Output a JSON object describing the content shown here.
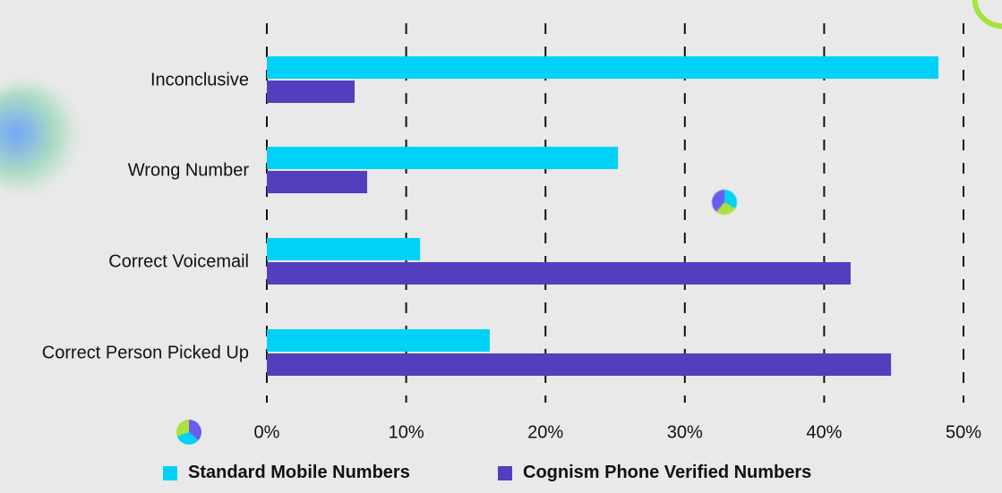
{
  "chart_data": {
    "type": "bar",
    "orientation": "horizontal",
    "title": "",
    "xlabel": "",
    "ylabel": "",
    "categories": [
      "Inconclusive",
      "Wrong Number",
      "Correct Voicemail",
      "Correct Person Picked Up"
    ],
    "series": [
      {
        "name": "Standard Mobile Numbers",
        "values": [
          48.2,
          25.2,
          11.0,
          16.0
        ]
      },
      {
        "name": "Cognism Phone Verified Numbers",
        "values": [
          6.3,
          7.2,
          41.9,
          44.8
        ]
      }
    ],
    "xlim": [
      0,
      50
    ],
    "xticks": [
      0,
      10,
      20,
      30,
      40,
      50
    ],
    "xtick_labels": [
      "0%",
      "10%",
      "20%",
      "30%",
      "40%",
      "50%"
    ],
    "grid": "vertical-dashed",
    "legend_position": "bottom"
  },
  "colors": {
    "background": "#e9e9e9",
    "series_standard": "#00d2f7",
    "series_cognism": "#523fbe",
    "grid": "#111111",
    "text": "#111111"
  }
}
